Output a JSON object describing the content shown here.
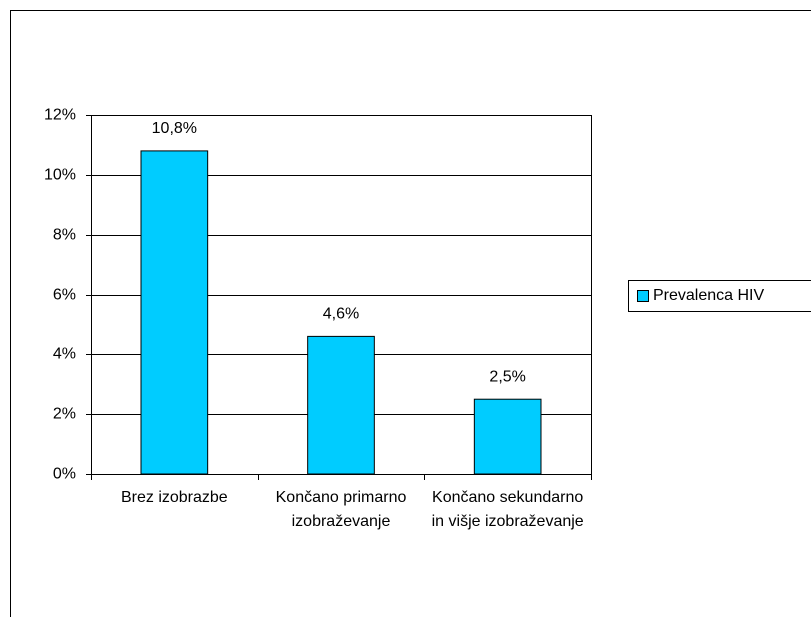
{
  "chart_data": {
    "type": "bar",
    "categories": [
      "Brez izobrazbe",
      "Končano primarno izobraževanje",
      "Končano sekundarno in višje izobraževanje"
    ],
    "series": [
      {
        "name": "Prevalenca HIV",
        "color": "#00ccff",
        "values": [
          10.8,
          4.6,
          2.5
        ],
        "value_labels": [
          "10,8%",
          "4,6%",
          "2,5%"
        ]
      }
    ],
    "ylim": [
      0,
      12
    ],
    "yticks": [
      {
        "value": 0,
        "label": "0%"
      },
      {
        "value": 2,
        "label": "2%"
      },
      {
        "value": 4,
        "label": "4%"
      },
      {
        "value": 6,
        "label": "6%"
      },
      {
        "value": 8,
        "label": "8%"
      },
      {
        "value": 10,
        "label": "10%"
      },
      {
        "value": 12,
        "label": "12%"
      }
    ],
    "grid": true,
    "legend": "right"
  }
}
